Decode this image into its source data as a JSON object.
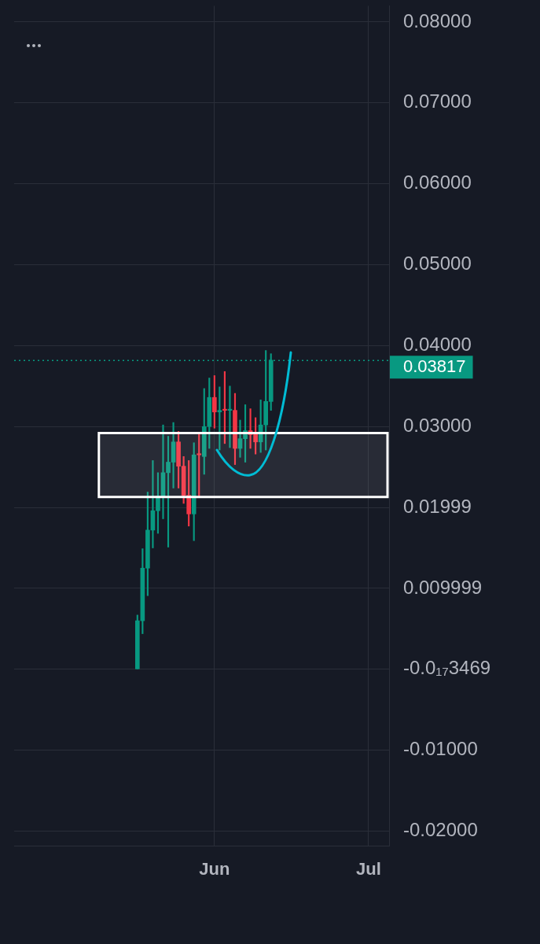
{
  "chart_data": {
    "type": "candlestick",
    "x": [
      "--05-17",
      "--05-18",
      "--05-19",
      "--05-20",
      "--05-21",
      "--05-22",
      "--05-23",
      "--05-24",
      "--05-25",
      "--05-26",
      "--05-27",
      "--05-28",
      "--05-29",
      "--05-30",
      "--05-31",
      "--06-01",
      "--06-02",
      "--06-03",
      "--06-04",
      "--06-05",
      "--06-06",
      "--06-07",
      "--06-08",
      "--06-09",
      "--06-10",
      "--06-11",
      "--06-12"
    ],
    "ohlc": [
      [
        0.0,
        0.0067,
        0.0,
        0.006
      ],
      [
        0.006,
        0.0149,
        0.0044,
        0.0125
      ],
      [
        0.0125,
        0.0219,
        0.0091,
        0.0172
      ],
      [
        0.0172,
        0.0258,
        0.015,
        0.0196
      ],
      [
        0.0196,
        0.0243,
        0.0168,
        0.0214
      ],
      [
        0.0214,
        0.0302,
        0.0186,
        0.0243
      ],
      [
        0.0243,
        0.0288,
        0.0151,
        0.0256
      ],
      [
        0.0256,
        0.0305,
        0.0224,
        0.0281
      ],
      [
        0.0281,
        0.0294,
        0.0224,
        0.0251
      ],
      [
        0.0251,
        0.0263,
        0.0205,
        0.0215
      ],
      [
        0.0215,
        0.0258,
        0.0177,
        0.0192
      ],
      [
        0.0192,
        0.028,
        0.0159,
        0.0265
      ],
      [
        0.0266,
        0.0291,
        0.0214,
        0.0265
      ],
      [
        0.0263,
        0.0347,
        0.0241,
        0.03
      ],
      [
        0.03,
        0.036,
        0.0273,
        0.0336
      ],
      [
        0.0336,
        0.0363,
        0.0298,
        0.0318
      ],
      [
        0.0318,
        0.0349,
        0.0271,
        0.032
      ],
      [
        0.0321,
        0.0368,
        0.0279,
        0.032
      ],
      [
        0.032,
        0.035,
        0.0274,
        0.0321
      ],
      [
        0.032,
        0.0341,
        0.0253,
        0.0273
      ],
      [
        0.0273,
        0.0308,
        0.0262,
        0.0285
      ],
      [
        0.0285,
        0.0327,
        0.0256,
        0.0295
      ],
      [
        0.0295,
        0.0322,
        0.0273,
        0.029
      ],
      [
        0.0293,
        0.0311,
        0.0266,
        0.0281
      ],
      [
        0.0281,
        0.0333,
        0.0268,
        0.0302
      ],
      [
        0.0302,
        0.0394,
        0.0271,
        0.0331
      ],
      [
        0.0331,
        0.039,
        0.032,
        0.0382
      ]
    ],
    "colors": [
      "#089981",
      "#089981",
      "#089981",
      "#089981",
      "#089981",
      "#089981",
      "#089981",
      "#089981",
      "#f23645",
      "#f23645",
      "#f23645",
      "#089981",
      "#f23645",
      "#089981",
      "#089981",
      "#f23645",
      "#089981",
      "#f23645",
      "#089981",
      "#f23645",
      "#089981",
      "#089981",
      "#f23645",
      "#f23645",
      "#089981",
      "#089981",
      "#089981"
    ],
    "xlim": [
      "--04-23",
      "--07-05"
    ],
    "xticks": [
      {
        "value": "--06-01",
        "label": "Jun"
      },
      {
        "value": "--07-01",
        "label": "Jul"
      }
    ],
    "ylim": [
      -0.0218,
      0.082
    ],
    "yticks": [
      {
        "value": 0.08,
        "label": "0.08000"
      },
      {
        "value": 0.07,
        "label": "0.07000"
      },
      {
        "value": 0.06,
        "label": "0.06000"
      },
      {
        "value": 0.05,
        "label": "0.05000"
      },
      {
        "value": 0.04,
        "label": "0.04000"
      },
      {
        "value": 0.03,
        "label": "0.03000"
      },
      {
        "value": 0.01999,
        "label": "0.01999"
      },
      {
        "value": 0.009999,
        "label": "0.009999"
      },
      {
        "value": 0,
        "label": "-0.0₁₇3469"
      },
      {
        "value": -0.01,
        "label": "-0.01000"
      },
      {
        "value": -0.02,
        "label": "-0.02000"
      }
    ],
    "grid": true,
    "bands": [
      {
        "axis": "y",
        "from": 0.0213,
        "to": 0.0292,
        "color": "#ffffff"
      }
    ],
    "ref_lines": [
      {
        "axis": "y",
        "value": 0.03817,
        "label": "0.03817",
        "color": "#089981",
        "line_style": "dotted"
      }
    ]
  }
}
